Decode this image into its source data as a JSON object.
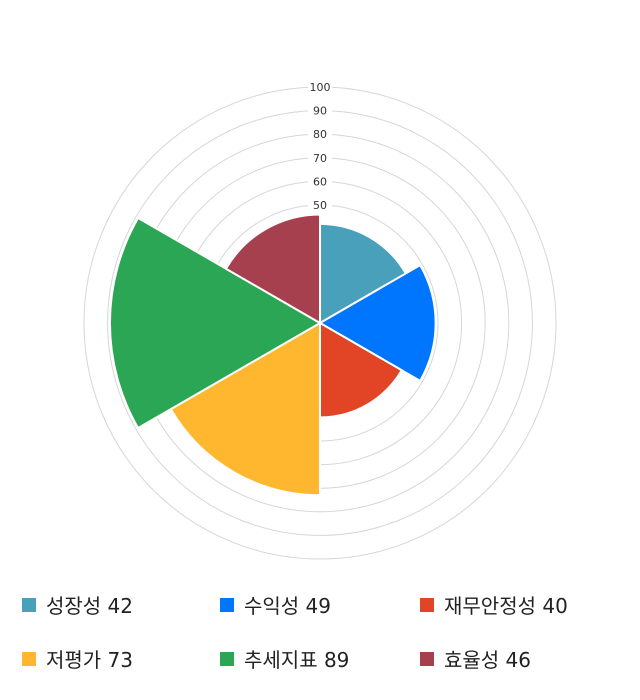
{
  "chart_data": {
    "type": "polar-area",
    "rlim": [
      0,
      100
    ],
    "rticks": [
      10,
      20,
      30,
      40,
      50,
      60,
      70,
      80,
      90,
      100
    ],
    "grid": true,
    "legend_position": "bottom",
    "categories": [
      "성장성",
      "수익성",
      "재무안정성",
      "저평가",
      "추세지표",
      "효율성"
    ],
    "values": [
      42,
      49,
      40,
      73,
      89,
      46
    ],
    "colors": [
      "#48a0bb",
      "#0076ff",
      "#e24426",
      "#ffb730",
      "#2aa655",
      "#a6404f"
    ]
  },
  "legend": [
    {
      "label": "성장성 42"
    },
    {
      "label": "수익성 49"
    },
    {
      "label": "재무안정성 40"
    },
    {
      "label": "저평가 73"
    },
    {
      "label": "추세지표 89"
    },
    {
      "label": "효율성 46"
    }
  ]
}
